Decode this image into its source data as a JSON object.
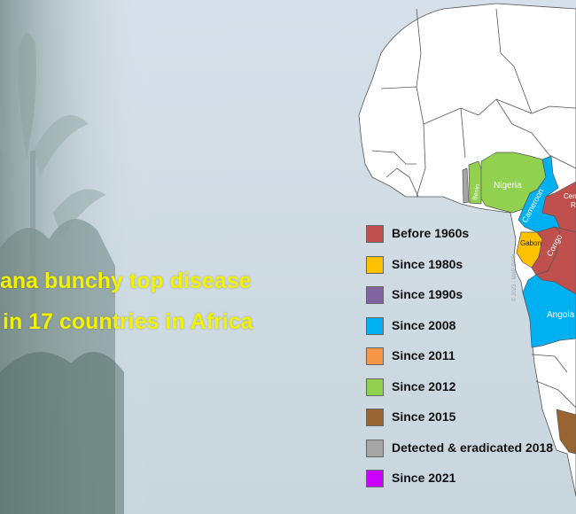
{
  "headline": {
    "line1": "ana bunchy top disease",
    "line2": "in 17 countries in Africa"
  },
  "map": {
    "country_labels": {
      "nigeria": "Nigeria",
      "cameroon": "Cameroon",
      "gabon": "Gabon",
      "congo": "Congo",
      "angola": "Angola",
      "central_african_republic_partial": "Cen",
      "benin_partial": "Benin",
      "car_fragment": "R"
    },
    "credit": "© 2023 · MAP DATA"
  },
  "legend": [
    {
      "label": "Before 1960s",
      "color": "#c0504d"
    },
    {
      "label": "Since 1980s",
      "color": "#ffc000"
    },
    {
      "label": "Since 1990s",
      "color": "#8064a2"
    },
    {
      "label": "Since 2008",
      "color": "#00b0f0"
    },
    {
      "label": "Since 2011",
      "color": "#f79646"
    },
    {
      "label": "Since 2012",
      "color": "#92d050"
    },
    {
      "label": "Since 2015",
      "color": "#996633"
    },
    {
      "label": "Detected & eradicated 2018",
      "color": "#a6a6a6"
    },
    {
      "label": "Since 2021",
      "color": "#cc00ff"
    }
  ],
  "colors": {
    "background": "#dbe5f1",
    "headline": "#f2f200",
    "land": "#ffffff",
    "border": "#555555"
  }
}
